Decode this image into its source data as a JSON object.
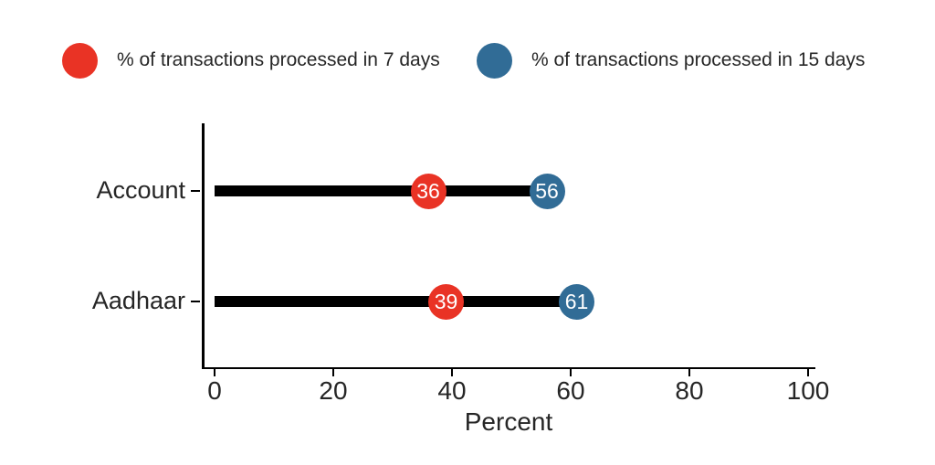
{
  "chart_data": {
    "type": "dumbbell",
    "title": "",
    "categories": [
      "Account",
      "Aadhaar"
    ],
    "series": [
      {
        "name": "% of transactions processed in 7 days",
        "color": "#e93325",
        "values": [
          36,
          39
        ]
      },
      {
        "name": "% of transactions processed in 15 days",
        "color": "#316c96",
        "values": [
          56,
          61
        ]
      }
    ],
    "connector_color": "#000000",
    "xlabel": "Percent",
    "xlim": [
      0,
      100
    ],
    "xticks": [
      0,
      20,
      40,
      60,
      80,
      100
    ],
    "grid": "off",
    "legend_position": "top",
    "point_labels_shown": true
  }
}
